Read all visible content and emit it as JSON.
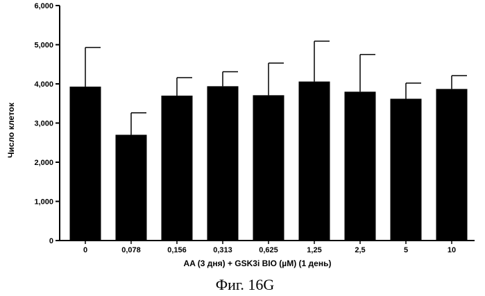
{
  "chart_data": {
    "type": "bar",
    "categories": [
      "0",
      "0,078",
      "0,156",
      "0,313",
      "0,625",
      "1,25",
      "2,5",
      "5",
      "10"
    ],
    "values": [
      3930,
      2700,
      3700,
      3940,
      3710,
      4060,
      3800,
      3620,
      3870
    ],
    "errors_upper": [
      4930,
      3260,
      4160,
      4310,
      4530,
      5090,
      4750,
      4020,
      4210
    ],
    "xlabel": "AA (3 дня)  + GSK3i BIO (µM) (1 день)",
    "ylabel": "Число клеток",
    "ylim": [
      0,
      6000
    ],
    "yticks": [
      0,
      1000,
      2000,
      3000,
      4000,
      5000,
      6000
    ],
    "ytick_labels": [
      "0",
      "1,000",
      "2,000",
      "3,000",
      "4,000",
      "5,000",
      "6,000"
    ],
    "grid": false,
    "bar_color": "#000000"
  },
  "caption": "Фиг. 16G"
}
